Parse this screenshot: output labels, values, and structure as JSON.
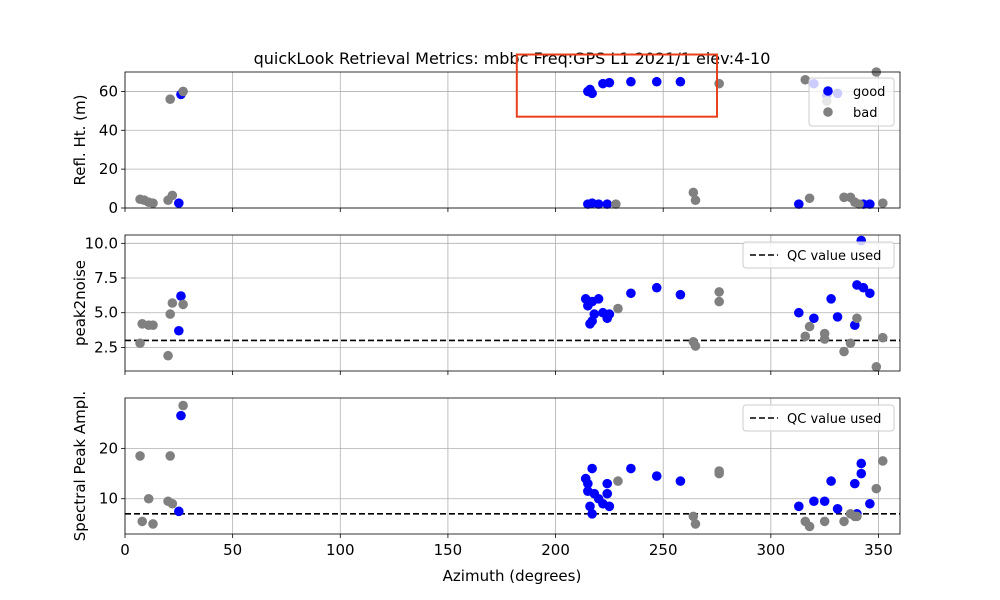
{
  "chart_data": {
    "type": "scatter",
    "title": "quickLook Retrieval Metrics: mbbc Freq:GPS L1 2021/1  elev:4-10",
    "xlabel": "Azimuth (degrees)",
    "xlim": [
      0,
      360
    ],
    "xticks": [
      0,
      50,
      100,
      150,
      200,
      250,
      300,
      350
    ],
    "grid": true,
    "annotation_box": {
      "color": "#e8401c",
      "x_range": [
        182,
        275
      ],
      "y_range": [
        47,
        79
      ],
      "panel": 0
    },
    "panels": [
      {
        "ylabel": "Refl. Ht. (m)",
        "ylim": [
          0,
          70
        ],
        "yticks": [
          0,
          20,
          40,
          60
        ],
        "legend": {
          "entries": [
            {
              "label": "good",
              "color": "#0000ff"
            },
            {
              "label": "bad",
              "color": "#808080"
            }
          ],
          "position": "upper right"
        },
        "series": [
          {
            "name": "good",
            "color": "#0000ff",
            "points": [
              [
                25,
                2.5
              ],
              [
                26,
                58.5
              ],
              [
                215,
                2
              ],
              [
                215,
                60
              ],
              [
                216,
                61
              ],
              [
                217,
                59
              ],
              [
                217,
                2.5
              ],
              [
                220,
                2
              ],
              [
                222,
                64
              ],
              [
                224,
                2
              ],
              [
                225,
                64.5
              ],
              [
                235,
                65
              ],
              [
                247,
                65
              ],
              [
                258,
                65
              ],
              [
                313,
                2
              ],
              [
                320,
                64
              ],
              [
                326,
                58
              ],
              [
                331,
                59
              ],
              [
                343,
                2
              ],
              [
                346,
                2
              ]
            ]
          },
          {
            "name": "bad",
            "color": "#808080",
            "points": [
              [
                7,
                4.5
              ],
              [
                9,
                4
              ],
              [
                11,
                3
              ],
              [
                13,
                2.5
              ],
              [
                20,
                4
              ],
              [
                21,
                56
              ],
              [
                22,
                6.5
              ],
              [
                27,
                60
              ],
              [
                228,
                2
              ],
              [
                264,
                8
              ],
              [
                265,
                4
              ],
              [
                276,
                64
              ],
              [
                316,
                66
              ],
              [
                318,
                5
              ],
              [
                326,
                55
              ],
              [
                334,
                5.5
              ],
              [
                337,
                5.5
              ],
              [
                339,
                3
              ],
              [
                341,
                2
              ],
              [
                349,
                70
              ],
              [
                352,
                2.5
              ]
            ]
          }
        ]
      },
      {
        "ylabel": "peak2noise",
        "ylim": [
          0.8,
          10.6
        ],
        "yticks": [
          2.5,
          5.0,
          7.5,
          10.0
        ],
        "hline": {
          "value": 3.0,
          "label": "QC value used"
        },
        "legend": {
          "entries": [
            {
              "label": "QC value used",
              "style": "dashed"
            }
          ],
          "position": "upper right"
        },
        "series": [
          {
            "name": "good",
            "color": "#0000ff",
            "points": [
              [
                25,
                3.7
              ],
              [
                26,
                6.2
              ],
              [
                214,
                6.0
              ],
              [
                215,
                5.5
              ],
              [
                216,
                4.2
              ],
              [
                217,
                4.4
              ],
              [
                217,
                5.8
              ],
              [
                218,
                4.9
              ],
              [
                220,
                6.0
              ],
              [
                222,
                5.0
              ],
              [
                224,
                4.6
              ],
              [
                225,
                4.9
              ],
              [
                235,
                6.4
              ],
              [
                247,
                6.8
              ],
              [
                258,
                6.3
              ],
              [
                313,
                5.0
              ],
              [
                320,
                4.6
              ],
              [
                328,
                6.0
              ],
              [
                331,
                4.7
              ],
              [
                339,
                4.1
              ],
              [
                340,
                7.0
              ],
              [
                342,
                10.2
              ],
              [
                343,
                6.8
              ],
              [
                346,
                6.4
              ]
            ]
          },
          {
            "name": "bad",
            "color": "#808080",
            "points": [
              [
                7,
                2.8
              ],
              [
                8,
                4.2
              ],
              [
                11,
                4.1
              ],
              [
                13,
                4.1
              ],
              [
                20,
                1.9
              ],
              [
                21,
                4.9
              ],
              [
                22,
                5.7
              ],
              [
                27,
                5.6
              ],
              [
                229,
                5.3
              ],
              [
                264,
                2.9
              ],
              [
                265,
                2.6
              ],
              [
                276,
                6.5
              ],
              [
                276,
                5.8
              ],
              [
                316,
                3.3
              ],
              [
                318,
                4.0
              ],
              [
                325,
                3.1
              ],
              [
                325,
                3.5
              ],
              [
                334,
                2.2
              ],
              [
                337,
                2.8
              ],
              [
                340,
                4.6
              ],
              [
                349,
                1.1
              ],
              [
                352,
                3.2
              ]
            ]
          }
        ]
      },
      {
        "ylabel": "Spectral Peak Ampl.",
        "ylim": [
          3,
          30
        ],
        "yticks": [
          10,
          20
        ],
        "hline": {
          "value": 7.0,
          "label": "QC value used"
        },
        "legend": {
          "entries": [
            {
              "label": "QC value used",
              "style": "dashed"
            }
          ],
          "position": "upper right"
        },
        "series": [
          {
            "name": "good",
            "color": "#0000ff",
            "points": [
              [
                25,
                7.5
              ],
              [
                26,
                26.5
              ],
              [
                214,
                14
              ],
              [
                215,
                13
              ],
              [
                215,
                11.5
              ],
              [
                216,
                8.5
              ],
              [
                217,
                16
              ],
              [
                217,
                7
              ],
              [
                218,
                11
              ],
              [
                220,
                10
              ],
              [
                222,
                9
              ],
              [
                224,
                13
              ],
              [
                224,
                11
              ],
              [
                225,
                8.5
              ],
              [
                235,
                16
              ],
              [
                247,
                14.5
              ],
              [
                258,
                13.5
              ],
              [
                313,
                8.5
              ],
              [
                320,
                9.5
              ],
              [
                325,
                9.5
              ],
              [
                328,
                13.5
              ],
              [
                331,
                8
              ],
              [
                339,
                13
              ],
              [
                340,
                7
              ],
              [
                342,
                17
              ],
              [
                342,
                15
              ],
              [
                346,
                9
              ]
            ]
          },
          {
            "name": "bad",
            "color": "#808080",
            "points": [
              [
                7,
                18.5
              ],
              [
                8,
                5.5
              ],
              [
                11,
                10
              ],
              [
                13,
                5
              ],
              [
                20,
                9.5
              ],
              [
                21,
                18.5
              ],
              [
                22,
                9
              ],
              [
                27,
                28.5
              ],
              [
                229,
                13.5
              ],
              [
                264,
                6.5
              ],
              [
                265,
                5
              ],
              [
                276,
                15.5
              ],
              [
                276,
                15
              ],
              [
                316,
                5.5
              ],
              [
                318,
                4.5
              ],
              [
                325,
                5.5
              ],
              [
                334,
                5.5
              ],
              [
                337,
                7
              ],
              [
                339,
                6.5
              ],
              [
                340,
                6.5
              ],
              [
                349,
                12
              ],
              [
                352,
                17.5
              ]
            ]
          }
        ]
      }
    ]
  }
}
